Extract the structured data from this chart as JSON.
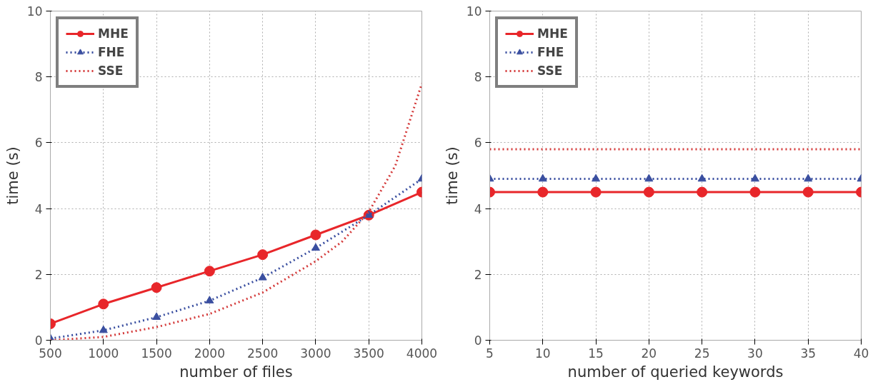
{
  "chart_data": [
    {
      "type": "line",
      "xlabel": "number of files",
      "ylabel": "time (s)",
      "x": [
        500,
        1000,
        1500,
        2000,
        2500,
        3000,
        3500,
        4000
      ],
      "xlim": [
        500,
        4000
      ],
      "ylim": [
        0,
        10
      ],
      "xticks": [
        500,
        1000,
        1500,
        2000,
        2500,
        3000,
        3500,
        4000
      ],
      "yticks": [
        0,
        2,
        4,
        6,
        8,
        10
      ],
      "grid": true,
      "legend": "top left",
      "series": [
        {
          "name": "MHE",
          "color": "#e8262a",
          "values": [
            0.5,
            1.1,
            1.6,
            2.1,
            2.6,
            3.2,
            3.8,
            4.5
          ],
          "marker": "circle",
          "line_style": "solid"
        },
        {
          "name": "FHE",
          "color": "#3a4fa0",
          "values": [
            0.05,
            0.3,
            0.7,
            1.2,
            1.9,
            2.8,
            3.8,
            4.9
          ],
          "marker": "triangle",
          "line_style": "dotted"
        },
        {
          "name": "SSE",
          "color": "#d43a3a",
          "x": [
            500,
            1000,
            1500,
            2000,
            2500,
            3000,
            3250,
            3500,
            3750,
            4000
          ],
          "values": [
            0,
            0.1,
            0.4,
            0.8,
            1.45,
            2.4,
            3.0,
            3.9,
            5.3,
            7.8
          ],
          "marker": "none",
          "line_style": "dotted"
        }
      ]
    },
    {
      "type": "line",
      "xlabel": "number of queried keywords",
      "ylabel": "time (s)",
      "x": [
        5,
        10,
        15,
        20,
        25,
        30,
        35,
        40
      ],
      "xlim": [
        5,
        40
      ],
      "ylim": [
        0,
        10
      ],
      "xticks": [
        5,
        10,
        15,
        20,
        25,
        30,
        35,
        40
      ],
      "yticks": [
        0,
        2,
        4,
        6,
        8,
        10
      ],
      "grid": true,
      "legend": "top left",
      "series": [
        {
          "name": "MHE",
          "color": "#e8262a",
          "values": [
            4.5,
            4.5,
            4.5,
            4.5,
            4.5,
            4.5,
            4.5,
            4.5
          ],
          "marker": "circle",
          "line_style": "solid"
        },
        {
          "name": "FHE",
          "color": "#3a4fa0",
          "values": [
            4.9,
            4.9,
            4.9,
            4.9,
            4.9,
            4.9,
            4.9,
            4.9
          ],
          "marker": "triangle",
          "line_style": "dotted"
        },
        {
          "name": "SSE",
          "color": "#d43a3a",
          "values": [
            5.8,
            5.8,
            5.8,
            5.8,
            5.8,
            5.8,
            5.8,
            5.8
          ],
          "marker": "none",
          "line_style": "dotted"
        }
      ]
    }
  ]
}
